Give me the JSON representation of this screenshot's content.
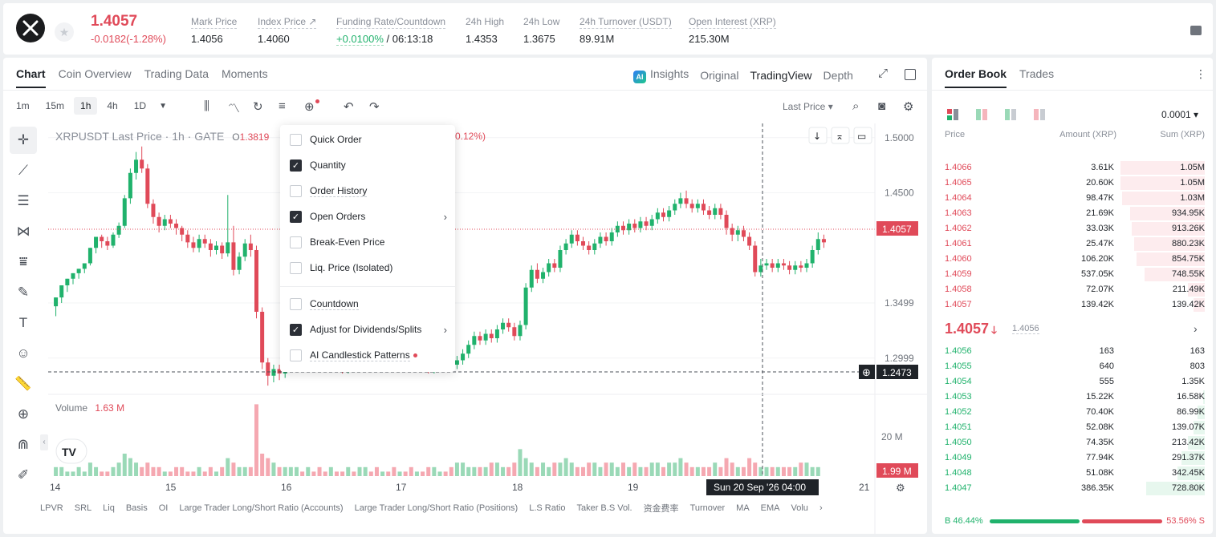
{
  "ticker": {
    "last_price": "1.4057",
    "change": "-0.0182(-1.28%)",
    "stats": [
      {
        "label": "Mark Price",
        "value": "1.4056"
      },
      {
        "label": "Index Price ↗",
        "value": "1.4060"
      },
      {
        "label": "Funding Rate/Countdown",
        "value_green": "+0.0100%",
        "value": " / 06:13:18"
      },
      {
        "label": "24h High",
        "value": "1.4353"
      },
      {
        "label": "24h Low",
        "value": "1.3675"
      },
      {
        "label": "24h Turnover (USDT)",
        "value": "89.91M"
      },
      {
        "label": "Open Interest (XRP)",
        "value": "215.30M"
      }
    ]
  },
  "chart_tabs": [
    "Chart",
    "Coin Overview",
    "Trading Data",
    "Moments"
  ],
  "view_tabs": {
    "ai_badge": "AI",
    "insights": "Insights",
    "original": "Original",
    "tradingview": "TradingView",
    "depth": "Depth"
  },
  "intervals": [
    "1m",
    "15m",
    "1h",
    "4h",
    "1D"
  ],
  "price_type": "Last Price ▾",
  "legend": {
    "title": "XRPUSDT Last Price · 1h · GATE",
    "open_label": "O",
    "open": "1.3819",
    "change_pct": "0.12%)",
    "volume_label": "Volume",
    "volume_value": "1.63 M"
  },
  "chart_data": {
    "type": "candlestick",
    "y_ticks": [
      "1.5000",
      "1.4500",
      "1.3499",
      "1.2999"
    ],
    "x_ticks": [
      "14",
      "15",
      "16",
      "17",
      "18",
      "19",
      "21"
    ],
    "current_price_label": "1.4057",
    "crosshair_price_label": "1.2473",
    "crosshair_time_label": "Sun 20 Sep '26   04:00",
    "volume_tick": "20 M",
    "volume_current_label": "1.99 M",
    "candles": [
      [
        1.347,
        1.355,
        1.343,
        1.338
      ],
      [
        1.355,
        1.366,
        1.352,
        1.35
      ],
      [
        1.366,
        1.372,
        1.365,
        1.36
      ],
      [
        1.372,
        1.377,
        1.373,
        1.367
      ],
      [
        1.377,
        1.381,
        1.378,
        1.372
      ],
      [
        1.381,
        1.386,
        1.383,
        1.377
      ],
      [
        1.386,
        1.4,
        1.39,
        1.384
      ],
      [
        1.4,
        1.41,
        1.405,
        1.395
      ],
      [
        1.41,
        1.406,
        1.412,
        1.4
      ],
      [
        1.406,
        1.402,
        1.41,
        1.398
      ],
      [
        1.402,
        1.412,
        1.414,
        1.4
      ],
      [
        1.412,
        1.42,
        1.423,
        1.409
      ],
      [
        1.42,
        1.445,
        1.448,
        1.418
      ],
      [
        1.445,
        1.468,
        1.472,
        1.44
      ],
      [
        1.468,
        1.48,
        1.487,
        1.462
      ],
      [
        1.48,
        1.472,
        1.492,
        1.468
      ],
      [
        1.472,
        1.44,
        1.476,
        1.436
      ],
      [
        1.44,
        1.428,
        1.444,
        1.422
      ],
      [
        1.428,
        1.42,
        1.432,
        1.414
      ],
      [
        1.42,
        1.426,
        1.43,
        1.416
      ],
      [
        1.426,
        1.422,
        1.43,
        1.418
      ],
      [
        1.422,
        1.418,
        1.426,
        1.412
      ],
      [
        1.418,
        1.412,
        1.42,
        1.406
      ],
      [
        1.412,
        1.405,
        1.416,
        1.4
      ],
      [
        1.405,
        1.4,
        1.41,
        1.396
      ],
      [
        1.4,
        1.408,
        1.412,
        1.396
      ],
      [
        1.408,
        1.404,
        1.412,
        1.4
      ],
      [
        1.404,
        1.398,
        1.408,
        1.392
      ],
      [
        1.398,
        1.402,
        1.406,
        1.394
      ],
      [
        1.402,
        1.395,
        1.405,
        1.39
      ],
      [
        1.395,
        1.405,
        1.448,
        1.392
      ],
      [
        1.405,
        1.38,
        1.42,
        1.375
      ],
      [
        1.38,
        1.392,
        1.396,
        1.376
      ],
      [
        1.392,
        1.404,
        1.408,
        1.388
      ],
      [
        1.404,
        1.398,
        1.412,
        1.392
      ],
      [
        1.398,
        1.342,
        1.402,
        1.336
      ],
      [
        1.342,
        1.296,
        1.346,
        1.29
      ],
      [
        1.296,
        1.284,
        1.3,
        1.275
      ],
      [
        1.284,
        1.29,
        1.294,
        1.278
      ],
      [
        1.29,
        1.286,
        1.294,
        1.28
      ],
      [
        1.286,
        1.292,
        1.296,
        1.282
      ],
      [
        1.292,
        1.298,
        1.302,
        1.288
      ],
      [
        1.298,
        1.304,
        1.308,
        1.294
      ],
      [
        1.304,
        1.3,
        1.308,
        1.296
      ],
      [
        1.3,
        1.306,
        1.31,
        1.296
      ],
      [
        1.306,
        1.302,
        1.31,
        1.298
      ],
      [
        1.302,
        1.298,
        1.306,
        1.292
      ],
      [
        1.298,
        1.294,
        1.302,
        1.288
      ],
      [
        1.294,
        1.3,
        1.304,
        1.29
      ],
      [
        1.3,
        1.296,
        1.304,
        1.292
      ],
      [
        1.296,
        1.29,
        1.3,
        1.286
      ],
      [
        1.29,
        1.296,
        1.3,
        1.286
      ],
      [
        1.296,
        1.292,
        1.3,
        1.288
      ],
      [
        1.292,
        1.298,
        1.302,
        1.288
      ],
      [
        1.298,
        1.302,
        1.306,
        1.294
      ],
      [
        1.302,
        1.298,
        1.306,
        1.294
      ],
      [
        1.298,
        1.294,
        1.302,
        1.29
      ],
      [
        1.294,
        1.3,
        1.304,
        1.29
      ],
      [
        1.3,
        1.297,
        1.304,
        1.293
      ],
      [
        1.297,
        1.294,
        1.3,
        1.29
      ],
      [
        1.294,
        1.298,
        1.302,
        1.29
      ],
      [
        1.298,
        1.295,
        1.302,
        1.292
      ],
      [
        1.295,
        1.292,
        1.298,
        1.288
      ],
      [
        1.292,
        1.296,
        1.3,
        1.288
      ],
      [
        1.296,
        1.293,
        1.3,
        1.29
      ],
      [
        1.293,
        1.29,
        1.296,
        1.286
      ],
      [
        1.29,
        1.294,
        1.298,
        1.286
      ],
      [
        1.294,
        1.3,
        1.304,
        1.29
      ],
      [
        1.3,
        1.297,
        1.304,
        1.293
      ],
      [
        1.297,
        1.294,
        1.3,
        1.29
      ],
      [
        1.294,
        1.298,
        1.302,
        1.29
      ],
      [
        1.298,
        1.304,
        1.308,
        1.294
      ],
      [
        1.304,
        1.312,
        1.316,
        1.3
      ],
      [
        1.312,
        1.32,
        1.324,
        1.308
      ],
      [
        1.32,
        1.316,
        1.324,
        1.312
      ],
      [
        1.316,
        1.322,
        1.326,
        1.312
      ],
      [
        1.322,
        1.318,
        1.326,
        1.314
      ],
      [
        1.318,
        1.326,
        1.33,
        1.314
      ],
      [
        1.326,
        1.332,
        1.336,
        1.322
      ],
      [
        1.332,
        1.328,
        1.336,
        1.324
      ],
      [
        1.328,
        1.32,
        1.332,
        1.316
      ],
      [
        1.32,
        1.33,
        1.334,
        1.316
      ],
      [
        1.33,
        1.364,
        1.368,
        1.326
      ],
      [
        1.364,
        1.38,
        1.384,
        1.36
      ],
      [
        1.38,
        1.372,
        1.386,
        1.368
      ],
      [
        1.372,
        1.378,
        1.382,
        1.368
      ],
      [
        1.378,
        1.386,
        1.39,
        1.374
      ],
      [
        1.386,
        1.382,
        1.39,
        1.378
      ],
      [
        1.382,
        1.398,
        1.402,
        1.378
      ],
      [
        1.398,
        1.404,
        1.408,
        1.394
      ],
      [
        1.404,
        1.412,
        1.416,
        1.4
      ],
      [
        1.412,
        1.406,
        1.416,
        1.402
      ],
      [
        1.406,
        1.402,
        1.41,
        1.398
      ],
      [
        1.402,
        1.398,
        1.406,
        1.394
      ],
      [
        1.398,
        1.404,
        1.408,
        1.394
      ],
      [
        1.404,
        1.41,
        1.414,
        1.4
      ],
      [
        1.41,
        1.406,
        1.414,
        1.402
      ],
      [
        1.406,
        1.414,
        1.418,
        1.402
      ],
      [
        1.414,
        1.42,
        1.424,
        1.41
      ],
      [
        1.42,
        1.416,
        1.424,
        1.412
      ],
      [
        1.416,
        1.422,
        1.426,
        1.412
      ],
      [
        1.422,
        1.418,
        1.426,
        1.414
      ],
      [
        1.418,
        1.424,
        1.428,
        1.414
      ],
      [
        1.424,
        1.42,
        1.428,
        1.416
      ],
      [
        1.42,
        1.426,
        1.43,
        1.416
      ],
      [
        1.426,
        1.432,
        1.436,
        1.422
      ],
      [
        1.432,
        1.428,
        1.436,
        1.424
      ],
      [
        1.428,
        1.434,
        1.438,
        1.424
      ],
      [
        1.434,
        1.44,
        1.444,
        1.43
      ],
      [
        1.44,
        1.445,
        1.45,
        1.436
      ],
      [
        1.445,
        1.44,
        1.452,
        1.436
      ],
      [
        1.44,
        1.436,
        1.444,
        1.432
      ],
      [
        1.436,
        1.44,
        1.444,
        1.432
      ],
      [
        1.44,
        1.434,
        1.444,
        1.43
      ],
      [
        1.434,
        1.43,
        1.438,
        1.426
      ],
      [
        1.43,
        1.436,
        1.44,
        1.426
      ],
      [
        1.436,
        1.43,
        1.44,
        1.426
      ],
      [
        1.43,
        1.418,
        1.434,
        1.412
      ],
      [
        1.418,
        1.412,
        1.422,
        1.406
      ],
      [
        1.412,
        1.416,
        1.42,
        1.406
      ],
      [
        1.416,
        1.41,
        1.42,
        1.406
      ],
      [
        1.41,
        1.402,
        1.414,
        1.398
      ],
      [
        1.402,
        1.378,
        1.406,
        1.374
      ],
      [
        1.378,
        1.384,
        1.39,
        1.374
      ],
      [
        1.384,
        1.386,
        1.39,
        1.38
      ],
      [
        1.386,
        1.382,
        1.39,
        1.378
      ],
      [
        1.382,
        1.386,
        1.39,
        1.378
      ],
      [
        1.386,
        1.384,
        1.39,
        1.38
      ],
      [
        1.384,
        1.38,
        1.388,
        1.376
      ],
      [
        1.38,
        1.384,
        1.388,
        1.376
      ],
      [
        1.384,
        1.382,
        1.388,
        1.378
      ],
      [
        1.382,
        1.386,
        1.39,
        1.378
      ],
      [
        1.386,
        1.398,
        1.402,
        1.382
      ],
      [
        1.398,
        1.408,
        1.414,
        1.394
      ],
      [
        1.408,
        1.405,
        1.412,
        1.4
      ]
    ],
    "volumes": [
      2,
      2,
      1,
      1,
      2,
      1,
      3,
      2,
      1,
      1,
      2,
      3,
      5,
      4,
      3,
      2,
      3,
      2,
      2,
      1,
      1,
      2,
      2,
      1,
      1,
      2,
      1,
      2,
      1,
      2,
      4,
      3,
      2,
      2,
      2,
      16,
      5,
      4,
      3,
      2,
      2,
      2,
      2,
      1,
      2,
      1,
      2,
      1,
      2,
      1,
      1,
      2,
      1,
      2,
      2,
      1,
      2,
      1,
      1,
      2,
      1,
      1,
      2,
      1,
      1,
      2,
      2,
      1,
      1,
      2,
      3,
      3,
      2,
      2,
      2,
      2,
      3,
      3,
      2,
      2,
      3,
      6,
      4,
      3,
      2,
      3,
      2,
      3,
      3,
      4,
      3,
      2,
      2,
      3,
      3,
      2,
      3,
      3,
      2,
      3,
      2,
      3,
      2,
      2,
      3,
      3,
      2,
      3,
      3,
      4,
      3,
      2,
      2,
      2,
      2,
      3,
      2,
      4,
      3,
      2,
      2,
      4,
      3,
      2,
      2,
      2,
      2,
      2,
      2,
      2,
      3,
      3,
      2,
      2
    ]
  },
  "quantity_menu": {
    "quick_order": "Quick Order",
    "quantity": "Quantity",
    "order_history": "Order History",
    "open_orders": "Open Orders",
    "break_even": "Break-Even Price",
    "liq_price": "Liq. Price (Isolated)",
    "countdown": "Countdown",
    "adjust_div": "Adjust for Dividends/Splits",
    "ai_patterns": "AI Candlestick Patterns"
  },
  "indicator_bar": [
    "LPVR",
    "SRL",
    "Liq",
    "Basis",
    "OI",
    "Large Trader Long/Short Ratio (Accounts)",
    "Large Trader Long/Short Ratio (Positions)",
    "L.S Ratio",
    "Taker B.S Vol.",
    "资金费率",
    "Turnover",
    "MA",
    "EMA",
    "Volu"
  ],
  "order_book": {
    "tabs": [
      "Order Book",
      "Trades"
    ],
    "precision": "0.0001 ▾",
    "columns": [
      "Price",
      "Amount (XRP)",
      "Sum (XRP)"
    ],
    "asks": [
      {
        "p": "1.4066",
        "a": "3.61K",
        "s": "1.05M",
        "w": 105
      },
      {
        "p": "1.4065",
        "a": "20.60K",
        "s": "1.05M",
        "w": 105
      },
      {
        "p": "1.4064",
        "a": "98.47K",
        "s": "1.03M",
        "w": 103
      },
      {
        "p": "1.4063",
        "a": "21.69K",
        "s": "934.95K",
        "w": 93
      },
      {
        "p": "1.4062",
        "a": "33.03K",
        "s": "913.26K",
        "w": 91
      },
      {
        "p": "1.4061",
        "a": "25.47K",
        "s": "880.23K",
        "w": 88
      },
      {
        "p": "1.4060",
        "a": "106.20K",
        "s": "854.75K",
        "w": 85
      },
      {
        "p": "1.4059",
        "a": "537.05K",
        "s": "748.55K",
        "w": 75
      },
      {
        "p": "1.4058",
        "a": "72.07K",
        "s": "211.49K",
        "w": 21
      },
      {
        "p": "1.4057",
        "a": "139.42K",
        "s": "139.42K",
        "w": 14
      }
    ],
    "mid": {
      "price": "1.4057",
      "arrow": "🡓",
      "ref": "1.4056"
    },
    "bids": [
      {
        "p": "1.4056",
        "a": "163",
        "s": "163",
        "w": 0
      },
      {
        "p": "1.4055",
        "a": "640",
        "s": "803",
        "w": 0
      },
      {
        "p": "1.4054",
        "a": "555",
        "s": "1.35K",
        "w": 0
      },
      {
        "p": "1.4053",
        "a": "15.22K",
        "s": "16.58K",
        "w": 2
      },
      {
        "p": "1.4052",
        "a": "70.40K",
        "s": "86.99K",
        "w": 9
      },
      {
        "p": "1.4051",
        "a": "52.08K",
        "s": "139.07K",
        "w": 14
      },
      {
        "p": "1.4050",
        "a": "74.35K",
        "s": "213.42K",
        "w": 21
      },
      {
        "p": "1.4049",
        "a": "77.94K",
        "s": "291.37K",
        "w": 29
      },
      {
        "p": "1.4048",
        "a": "51.08K",
        "s": "342.45K",
        "w": 34
      },
      {
        "p": "1.4047",
        "a": "386.35K",
        "s": "728.80K",
        "w": 73
      }
    ],
    "buy_label": "B 46.44%",
    "sell_label": "53.56% S"
  }
}
